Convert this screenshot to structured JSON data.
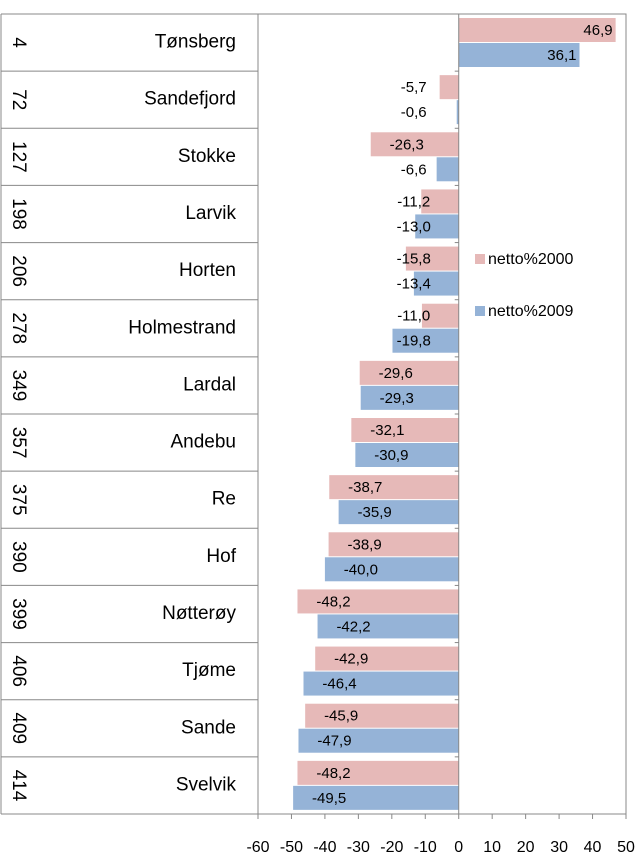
{
  "chart_data": {
    "type": "bar",
    "orientation": "horizontal",
    "ranks": [
      4,
      72,
      127,
      198,
      206,
      278,
      349,
      357,
      375,
      390,
      399,
      406,
      409,
      414
    ],
    "categories": [
      "Tønsberg",
      "Sandefjord",
      "Stokke",
      "Larvik",
      "Horten",
      "Holmestrand",
      "Lardal",
      "Andebu",
      "Re",
      "Hof",
      "Nøtterøy",
      "Tjøme",
      "Sande",
      "Svelvik"
    ],
    "series": [
      {
        "name": "netto%2000",
        "color": "#e6b9b8",
        "values": [
          46.9,
          -5.7,
          -26.3,
          -11.2,
          -15.8,
          -11.0,
          -29.6,
          -32.1,
          -38.7,
          -38.9,
          -48.2,
          -42.9,
          -45.9,
          -48.2
        ],
        "value_labels": [
          "46,9",
          "-5,7",
          "-26,3",
          "-11,2",
          "-15,8",
          "-11,0",
          "-29,6",
          "-32,1",
          "-38,7",
          "-38,9",
          "-48,2",
          "-42,9",
          "-45,9",
          "-48,2"
        ]
      },
      {
        "name": "netto%2009",
        "color": "#95b3d7",
        "values": [
          36.1,
          -0.6,
          -6.6,
          -13.0,
          -13.4,
          -19.8,
          -29.3,
          -30.9,
          -35.9,
          -40.0,
          -42.2,
          -46.4,
          -47.9,
          -49.5
        ],
        "value_labels": [
          "36,1",
          "-0,6",
          "-6,6",
          "-13,0",
          "-13,4",
          "-19,8",
          "-29,3",
          "-30,9",
          "-35,9",
          "-40,0",
          "-42,2",
          "-46,4",
          "-47,9",
          "-49,5"
        ]
      }
    ],
    "xlim": [
      -60,
      50
    ],
    "xticks": [
      -60,
      -50,
      -40,
      -30,
      -20,
      -10,
      0,
      10,
      20,
      30,
      40,
      50
    ],
    "legend": "right"
  }
}
